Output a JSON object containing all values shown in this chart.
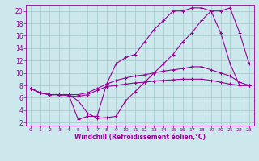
{
  "xlabel": "Windchill (Refroidissement éolien,°C)",
  "background_color": "#cce8ec",
  "grid_color": "#aacccc",
  "line_color": "#990099",
  "x_ticks": [
    0,
    1,
    2,
    3,
    4,
    5,
    6,
    7,
    8,
    9,
    10,
    11,
    12,
    13,
    14,
    15,
    16,
    17,
    18,
    19,
    20,
    21,
    22,
    23
  ],
  "y_ticks": [
    2,
    4,
    6,
    8,
    10,
    12,
    14,
    16,
    18,
    20
  ],
  "xlim": [
    -0.5,
    23.5
  ],
  "ylim": [
    1.5,
    21
  ],
  "lines": [
    {
      "x": [
        0,
        1,
        2,
        3,
        4,
        5,
        6,
        7,
        8,
        9,
        10,
        11,
        12,
        13,
        14,
        15,
        16,
        17,
        18,
        19,
        20,
        21,
        22,
        23
      ],
      "y": [
        7.5,
        6.8,
        6.5,
        6.5,
        6.5,
        2.5,
        3.0,
        3.0,
        8.2,
        11.5,
        12.5,
        13.0,
        15.0,
        17.0,
        18.5,
        20.0,
        20.0,
        20.5,
        20.5,
        20.0,
        16.5,
        11.5,
        8.0,
        8.0
      ]
    },
    {
      "x": [
        0,
        1,
        2,
        3,
        4,
        5,
        6,
        7,
        8,
        9,
        10,
        11,
        12,
        13,
        14,
        15,
        16,
        17,
        18,
        19,
        20,
        21,
        22,
        23
      ],
      "y": [
        7.5,
        6.8,
        6.5,
        6.5,
        6.5,
        5.5,
        3.5,
        2.7,
        2.8,
        3.0,
        5.5,
        7.0,
        8.5,
        10.0,
        11.5,
        13.0,
        15.0,
        16.5,
        18.5,
        20.0,
        20.0,
        20.5,
        16.5,
        11.5
      ]
    },
    {
      "x": [
        0,
        1,
        2,
        3,
        4,
        5,
        6,
        7,
        8,
        9,
        10,
        11,
        12,
        13,
        14,
        15,
        16,
        17,
        18,
        19,
        20,
        21,
        22,
        23
      ],
      "y": [
        7.5,
        6.8,
        6.5,
        6.5,
        6.5,
        6.5,
        6.8,
        7.5,
        8.2,
        8.8,
        9.2,
        9.5,
        9.7,
        10.0,
        10.3,
        10.5,
        10.7,
        11.0,
        11.0,
        10.5,
        10.0,
        9.5,
        8.5,
        8.0
      ]
    },
    {
      "x": [
        0,
        1,
        2,
        3,
        4,
        5,
        6,
        7,
        8,
        9,
        10,
        11,
        12,
        13,
        14,
        15,
        16,
        17,
        18,
        19,
        20,
        21,
        22,
        23
      ],
      "y": [
        7.5,
        6.8,
        6.5,
        6.5,
        6.3,
        6.2,
        6.5,
        7.2,
        7.8,
        8.0,
        8.2,
        8.4,
        8.5,
        8.7,
        8.8,
        8.9,
        9.0,
        9.0,
        9.0,
        8.8,
        8.5,
        8.2,
        8.0,
        8.0
      ]
    }
  ]
}
